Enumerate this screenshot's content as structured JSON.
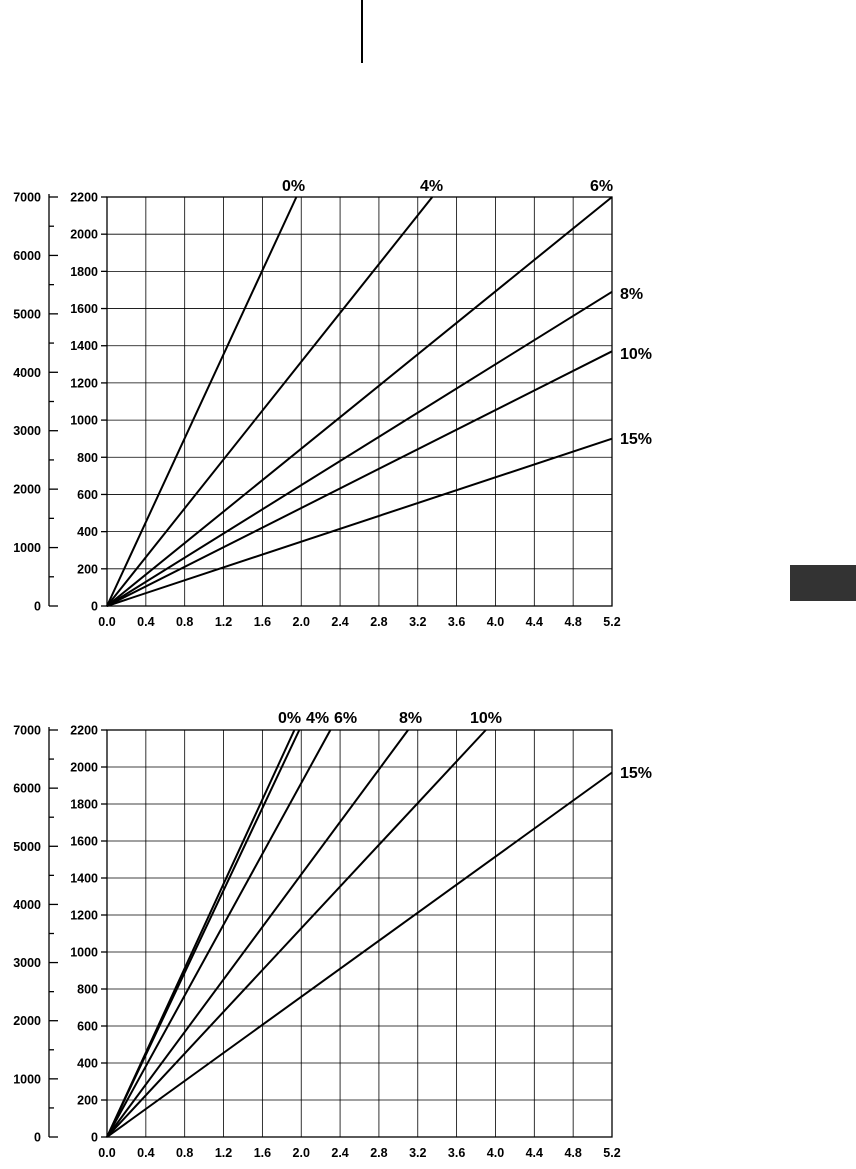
{
  "chart_data": [
    {
      "type": "line",
      "x_ticks": [
        "0.0",
        "0.4",
        "0.8",
        "1.2",
        "1.6",
        "2.0",
        "2.4",
        "2.8",
        "3.2",
        "3.6",
        "4.0",
        "4.4",
        "4.8",
        "5.2"
      ],
      "y_ticks": [
        "0",
        "200",
        "400",
        "600",
        "800",
        "1000",
        "1200",
        "1400",
        "1600",
        "1800",
        "2000",
        "2200"
      ],
      "y2_ticks": [
        "0",
        "1000",
        "2000",
        "3000",
        "4000",
        "5000",
        "6000",
        "7000"
      ],
      "xlim": [
        0,
        5.2
      ],
      "ylim": [
        0,
        2200
      ],
      "y2lim": [
        0,
        7000
      ],
      "grid": true,
      "series": [
        {
          "name": "0%",
          "x": [
            0,
            1.95
          ],
          "y": [
            0,
            2200
          ]
        },
        {
          "name": "4%",
          "x": [
            0,
            3.35
          ],
          "y": [
            0,
            2200
          ]
        },
        {
          "name": "6%",
          "x": [
            0,
            5.2
          ],
          "y": [
            0,
            2200
          ]
        },
        {
          "name": "8%",
          "x": [
            0,
            5.2
          ],
          "y": [
            0,
            1690
          ]
        },
        {
          "name": "10%",
          "x": [
            0,
            5.2
          ],
          "y": [
            0,
            1370
          ]
        },
        {
          "name": "15%",
          "x": [
            0,
            5.2
          ],
          "y": [
            0,
            900
          ]
        }
      ]
    },
    {
      "type": "line",
      "x_ticks": [
        "0.0",
        "0.4",
        "0.8",
        "1.2",
        "1.6",
        "2.0",
        "2.4",
        "2.8",
        "3.2",
        "3.6",
        "4.0",
        "4.4",
        "4.8",
        "5.2"
      ],
      "y_ticks": [
        "0",
        "200",
        "400",
        "600",
        "800",
        "1000",
        "1200",
        "1400",
        "1600",
        "1800",
        "2000",
        "2200"
      ],
      "y2_ticks": [
        "0",
        "1000",
        "2000",
        "3000",
        "4000",
        "5000",
        "6000",
        "7000"
      ],
      "xlim": [
        0,
        5.2
      ],
      "ylim": [
        0,
        2200
      ],
      "y2lim": [
        0,
        7000
      ],
      "grid": true,
      "series": [
        {
          "name": "0%",
          "x": [
            0,
            1.93
          ],
          "y": [
            0,
            2200
          ]
        },
        {
          "name": "4%",
          "x": [
            0,
            1.98
          ],
          "y": [
            0,
            2200
          ]
        },
        {
          "name": "6%",
          "x": [
            0,
            2.3
          ],
          "y": [
            0,
            2200
          ]
        },
        {
          "name": "8%",
          "x": [
            0,
            3.1
          ],
          "y": [
            0,
            2200
          ]
        },
        {
          "name": "10%",
          "x": [
            0,
            3.9
          ],
          "y": [
            0,
            2200
          ]
        },
        {
          "name": "15%",
          "x": [
            0,
            5.2
          ],
          "y": [
            0,
            1970
          ]
        }
      ]
    }
  ]
}
